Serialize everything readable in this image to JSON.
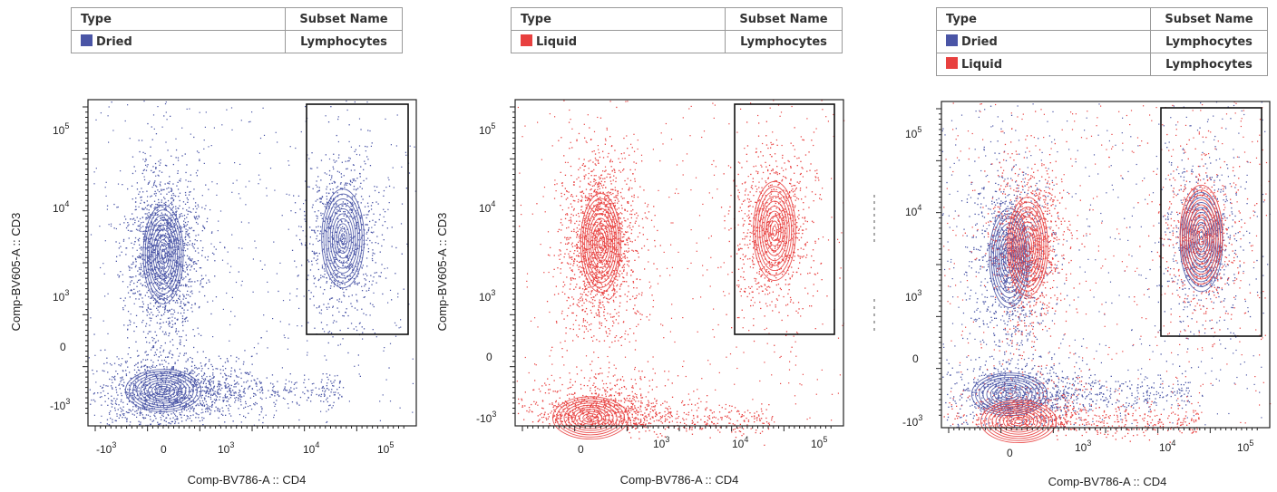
{
  "panels": [
    {
      "legend": {
        "headers": [
          "Type",
          "Subset Name"
        ],
        "rows": [
          {
            "type": "Dried",
            "subset": "Lymphocytes",
            "color": "#4a55a6"
          }
        ]
      },
      "xlabel": "Comp-BV786-A :: CD4",
      "ylabel": "Comp-BV605-A :: CD3"
    },
    {
      "legend": {
        "headers": [
          "Type",
          "Subset Name"
        ],
        "rows": [
          {
            "type": "Liquid",
            "subset": "Lymphocytes",
            "color": "#e8403f"
          }
        ]
      },
      "xlabel": "Comp-BV786-A :: CD4",
      "ylabel": "Comp-BV605-A :: CD3"
    },
    {
      "legend": {
        "headers": [
          "Type",
          "Subset Name"
        ],
        "rows": [
          {
            "type": "Dried",
            "subset": "Lymphocytes",
            "color": "#4a55a6"
          },
          {
            "type": "Liquid",
            "subset": "Lymphocytes",
            "color": "#e8403f"
          }
        ]
      },
      "xlabel": "Comp-BV786-A :: CD4",
      "ylabel": ""
    }
  ],
  "chart_data": [
    {
      "type": "scatter",
      "xscale": "biexponential",
      "yscale": "biexponential",
      "x_ticks": [
        "-10^3",
        "0",
        "10^3",
        "10^4",
        "10^5"
      ],
      "y_ticks": [
        "10^5",
        "10^4",
        "10^3",
        "0",
        "-10^3"
      ],
      "xlabel": "Comp-BV786-A :: CD4",
      "ylabel": "Comp-BV605-A :: CD3",
      "series": [
        {
          "name": "Dried",
          "color": "#4a55a6",
          "populations": [
            {
              "cd4": 0,
              "cd3": 2500
            },
            {
              "cd4": 0,
              "cd3": 0
            },
            {
              "cd4": 30000,
              "cd3": 4000
            }
          ]
        }
      ],
      "gate": {
        "cd4": [
          10000,
          120000
        ],
        "cd3": [
          300,
          160000
        ]
      }
    },
    {
      "type": "scatter",
      "xscale": "biexponential",
      "yscale": "biexponential",
      "x_ticks": [
        "0",
        "10^3",
        "10^4",
        "10^5"
      ],
      "y_ticks": [
        "10^5",
        "10^4",
        "10^3",
        "0",
        "-10^3"
      ],
      "xlabel": "Comp-BV786-A :: CD4",
      "ylabel": "Comp-BV605-A :: CD3",
      "series": [
        {
          "name": "Liquid",
          "color": "#e8403f",
          "populations": [
            {
              "cd4": 100,
              "cd3": 3500
            },
            {
              "cd4": 50,
              "cd3": -100
            },
            {
              "cd4": 30000,
              "cd3": 5000
            }
          ]
        }
      ],
      "gate": {
        "cd4": [
          10000,
          120000
        ],
        "cd3": [
          300,
          160000
        ]
      }
    },
    {
      "type": "scatter",
      "xscale": "biexponential",
      "yscale": "biexponential",
      "x_ticks": [
        "0",
        "10^3",
        "10^4",
        "10^5"
      ],
      "y_ticks": [
        "10^5",
        "10^4",
        "10^3",
        "0",
        "-10^3"
      ],
      "xlabel": "Comp-BV786-A :: CD4",
      "ylabel": "",
      "series": [
        {
          "name": "Dried",
          "color": "#4a55a6",
          "populations": [
            {
              "cd4": 0,
              "cd3": 2500
            },
            {
              "cd4": 0,
              "cd3": 0
            },
            {
              "cd4": 30000,
              "cd3": 4000
            }
          ]
        },
        {
          "name": "Liquid",
          "color": "#e8403f",
          "populations": [
            {
              "cd4": 100,
              "cd3": 3500
            },
            {
              "cd4": 50,
              "cd3": -100
            },
            {
              "cd4": 30000,
              "cd3": 5000
            }
          ]
        }
      ],
      "gate": {
        "cd4": [
          10000,
          120000
        ],
        "cd3": [
          300,
          160000
        ]
      }
    }
  ]
}
